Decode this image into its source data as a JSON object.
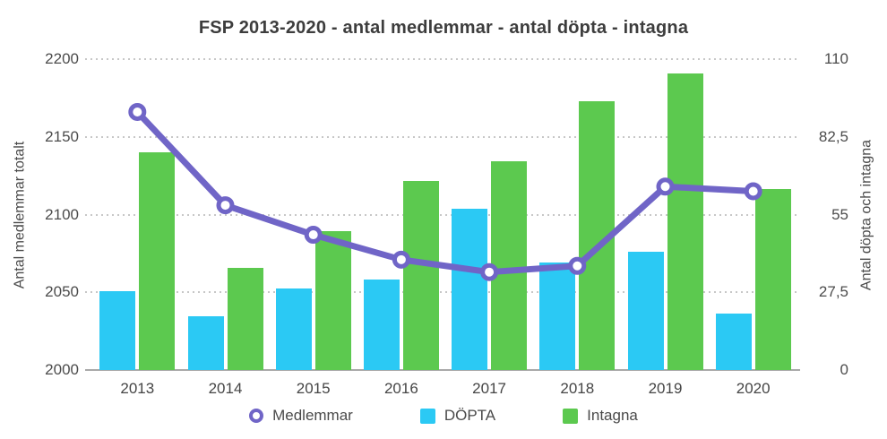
{
  "title": "FSP 2013-2020 - antal medlemmar - antal döpta - intagna",
  "left_axis": {
    "title": "Antal medlemmar totalt",
    "ticks": [
      "2200",
      "2150",
      "2100",
      "2050",
      "2000"
    ],
    "min": 2000,
    "max": 2200
  },
  "right_axis": {
    "title": "Antal döpta och intagna",
    "ticks": [
      "110",
      "82,5",
      "55",
      "27,5",
      "0"
    ],
    "min": 0,
    "max": 110
  },
  "legend": {
    "items": [
      {
        "label": "Medlemmar",
        "marker": "ring",
        "color": "#7065c7"
      },
      {
        "label": "DÖPTA",
        "marker": "square",
        "color": "#2bc9f4"
      },
      {
        "label": "Intagna",
        "marker": "square",
        "color": "#5cc94f"
      }
    ]
  },
  "chart_data": {
    "type": "bar",
    "subtype": "grouped-bars-with-line-overlay",
    "title": "FSP 2013-2020 - antal medlemmar - antal döpta - intagna",
    "categories": [
      "2013",
      "2014",
      "2015",
      "2016",
      "2017",
      "2018",
      "2019",
      "2020"
    ],
    "series": [
      {
        "name": "Medlemmar",
        "type": "line",
        "axis": "left",
        "color": "#7065c7",
        "marker": "open-circle",
        "values": [
          2166,
          2106,
          2087,
          2071,
          2063,
          2067,
          2118,
          2115
        ]
      },
      {
        "name": "DÖPTA",
        "type": "bar",
        "axis": "right",
        "color": "#2bc9f4",
        "values": [
          28,
          19,
          29,
          32,
          57,
          38,
          42,
          20
        ]
      },
      {
        "name": "Intagna",
        "type": "bar",
        "axis": "right",
        "color": "#5cc94f",
        "values": [
          77,
          36,
          49,
          67,
          74,
          95,
          105,
          64
        ]
      }
    ],
    "left_ylabel": "Antal medlemmar totalt",
    "right_ylabel": "Antal döpta och intagna",
    "left_ylim": [
      2000,
      2200
    ],
    "right_ylim": [
      0,
      110
    ],
    "gridlines": "horizontal-dotted",
    "legend_position": "bottom"
  }
}
